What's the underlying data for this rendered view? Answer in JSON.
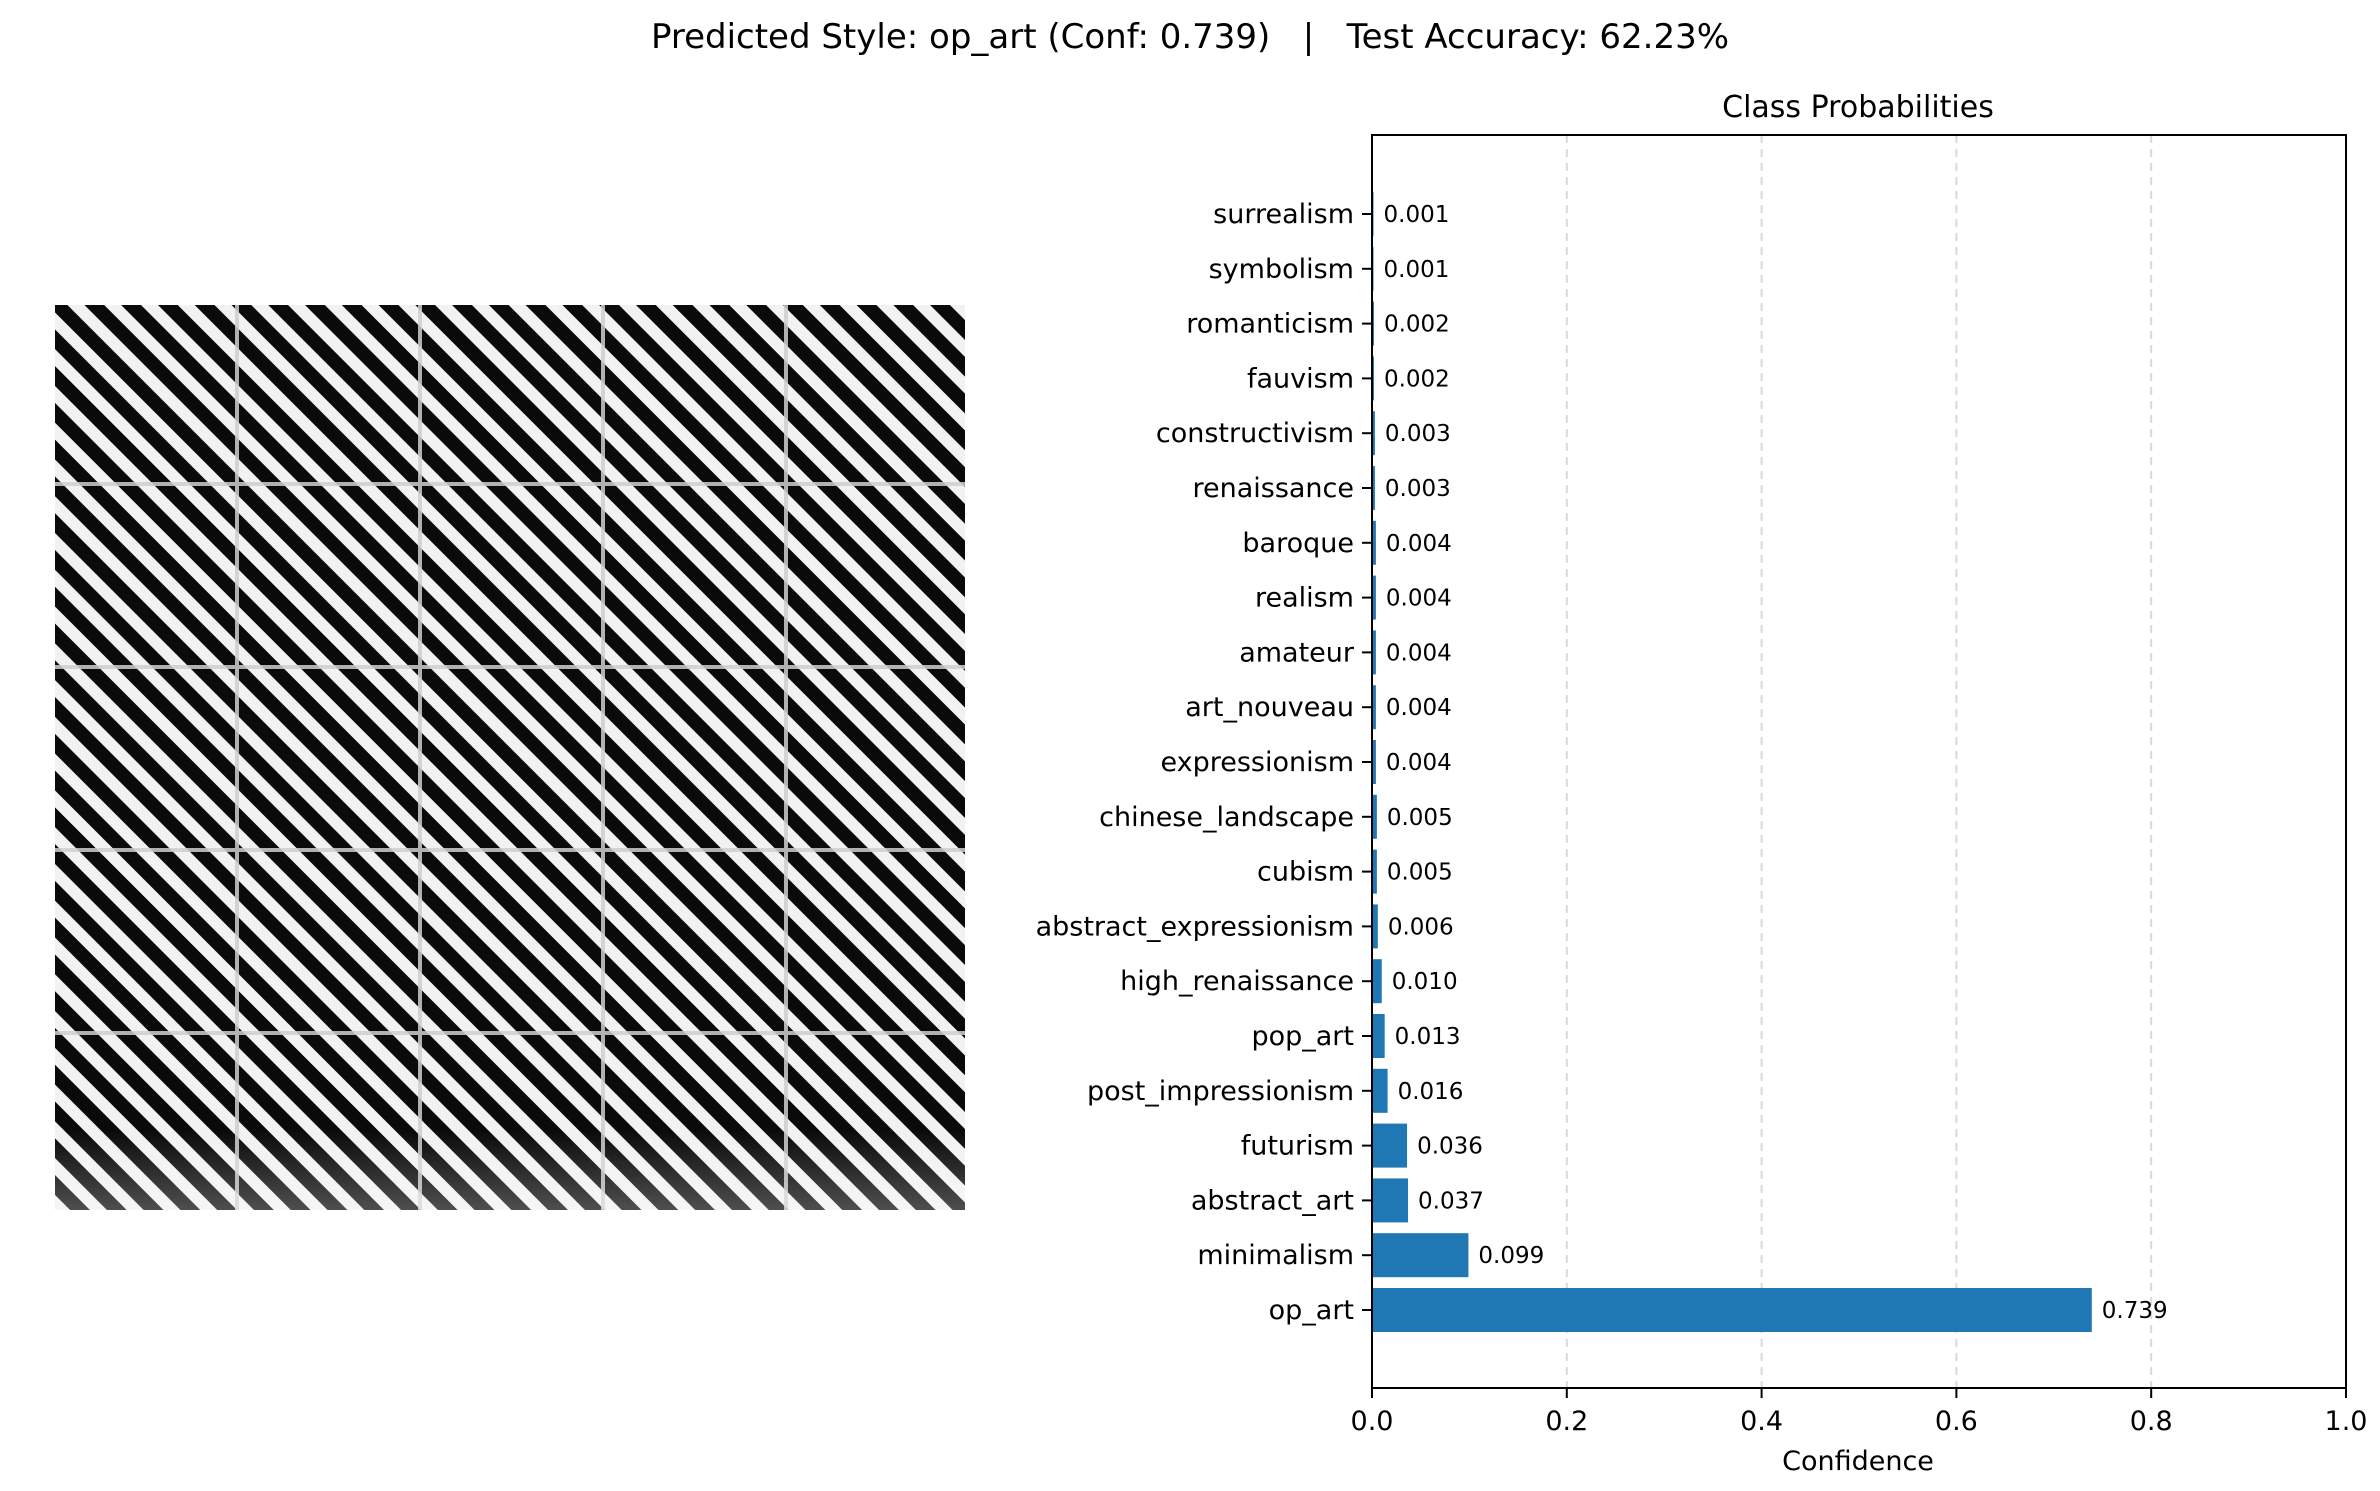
{
  "figure": {
    "suptitle": "Predicted Style: op_art (Conf: 0.739)   |   Test Accuracy: 62.23%"
  },
  "chart_data": {
    "type": "bar",
    "orientation": "horizontal",
    "title": "Class Probabilities",
    "xlabel": "Confidence",
    "ylabel": "",
    "xlim": [
      0,
      1.0
    ],
    "xticks": [
      "0.0",
      "0.2",
      "0.4",
      "0.6",
      "0.8",
      "1.0"
    ],
    "grid": "x-dashed",
    "bar_color": "#1f77b4",
    "categories": [
      "op_art",
      "minimalism",
      "abstract_art",
      "futurism",
      "post_impressionism",
      "pop_art",
      "high_renaissance",
      "abstract_expressionism",
      "cubism",
      "chinese_landscape",
      "expressionism",
      "art_nouveau",
      "amateur",
      "realism",
      "baroque",
      "renaissance",
      "constructivism",
      "fauvism",
      "romanticism",
      "symbolism",
      "surrealism"
    ],
    "values": [
      0.739,
      0.099,
      0.037,
      0.036,
      0.016,
      0.013,
      0.01,
      0.006,
      0.005,
      0.005,
      0.004,
      0.004,
      0.004,
      0.004,
      0.004,
      0.003,
      0.003,
      0.002,
      0.002,
      0.001,
      0.001
    ],
    "value_labels": [
      "0.739",
      "0.099",
      "0.037",
      "0.036",
      "0.016",
      "0.013",
      "0.010",
      "0.006",
      "0.005",
      "0.005",
      "0.004",
      "0.004",
      "0.004",
      "0.004",
      "0.004",
      "0.003",
      "0.003",
      "0.002",
      "0.002",
      "0.001",
      "0.001"
    ]
  },
  "image_panel": {
    "icon": "op-art-diagonal-stripes-image"
  }
}
